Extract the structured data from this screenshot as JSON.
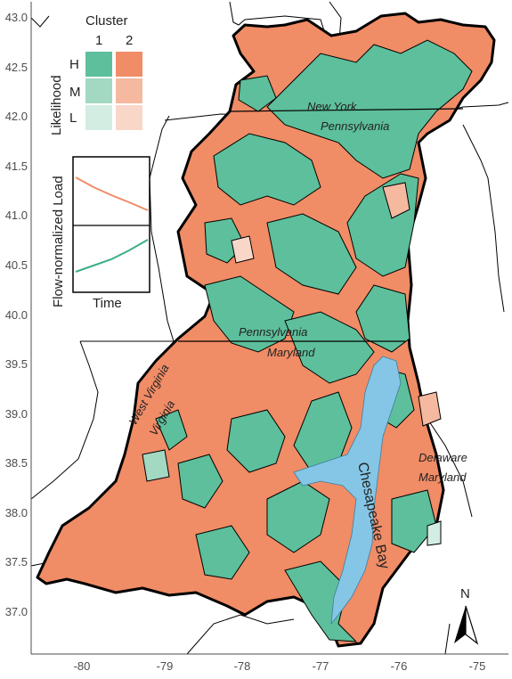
{
  "map": {
    "y_ticks": [
      "43.0",
      "42.5",
      "42.0",
      "41.5",
      "41.0",
      "40.5",
      "40.0",
      "39.5",
      "39.0",
      "38.5",
      "38.0",
      "37.5",
      "37.0"
    ],
    "x_ticks": [
      "-80",
      "-79",
      "-78",
      "-77",
      "-76",
      "-75"
    ],
    "colors": {
      "cluster1": {
        "H": "#5dbf9b",
        "M": "#a3d8c3",
        "L": "#d3ede3"
      },
      "cluster2": {
        "H": "#f08c66",
        "M": "#f5b9a0",
        "L": "#f8d7c9"
      },
      "water": "#85c6e6",
      "background": "#ffffff",
      "state_border": "#000000"
    },
    "place_labels": {
      "new_york": "New York",
      "pennsylvania_north": "Pennsylvania",
      "pennsylvania_south": "Pennsylvania",
      "maryland": "Maryland",
      "west_virginia": "West Virginia",
      "virginia": "Virginia",
      "delaware": "Delaware",
      "maryland_east": "Maryland",
      "chesapeake_bay": "Chesapeake Bay"
    },
    "north_arrow_label": "N"
  },
  "legend": {
    "cluster_title": "Cluster",
    "cluster_1": "1",
    "cluster_2": "2",
    "likelihood_title": "Likelihood",
    "levels": [
      "H",
      "M",
      "L"
    ]
  },
  "inset": {
    "ylabel": "Flow-normalized  Load",
    "xlabel": "Time",
    "series": [
      {
        "cluster": "2",
        "trend": "decreasing"
      },
      {
        "cluster": "1",
        "trend": "increasing"
      }
    ]
  }
}
